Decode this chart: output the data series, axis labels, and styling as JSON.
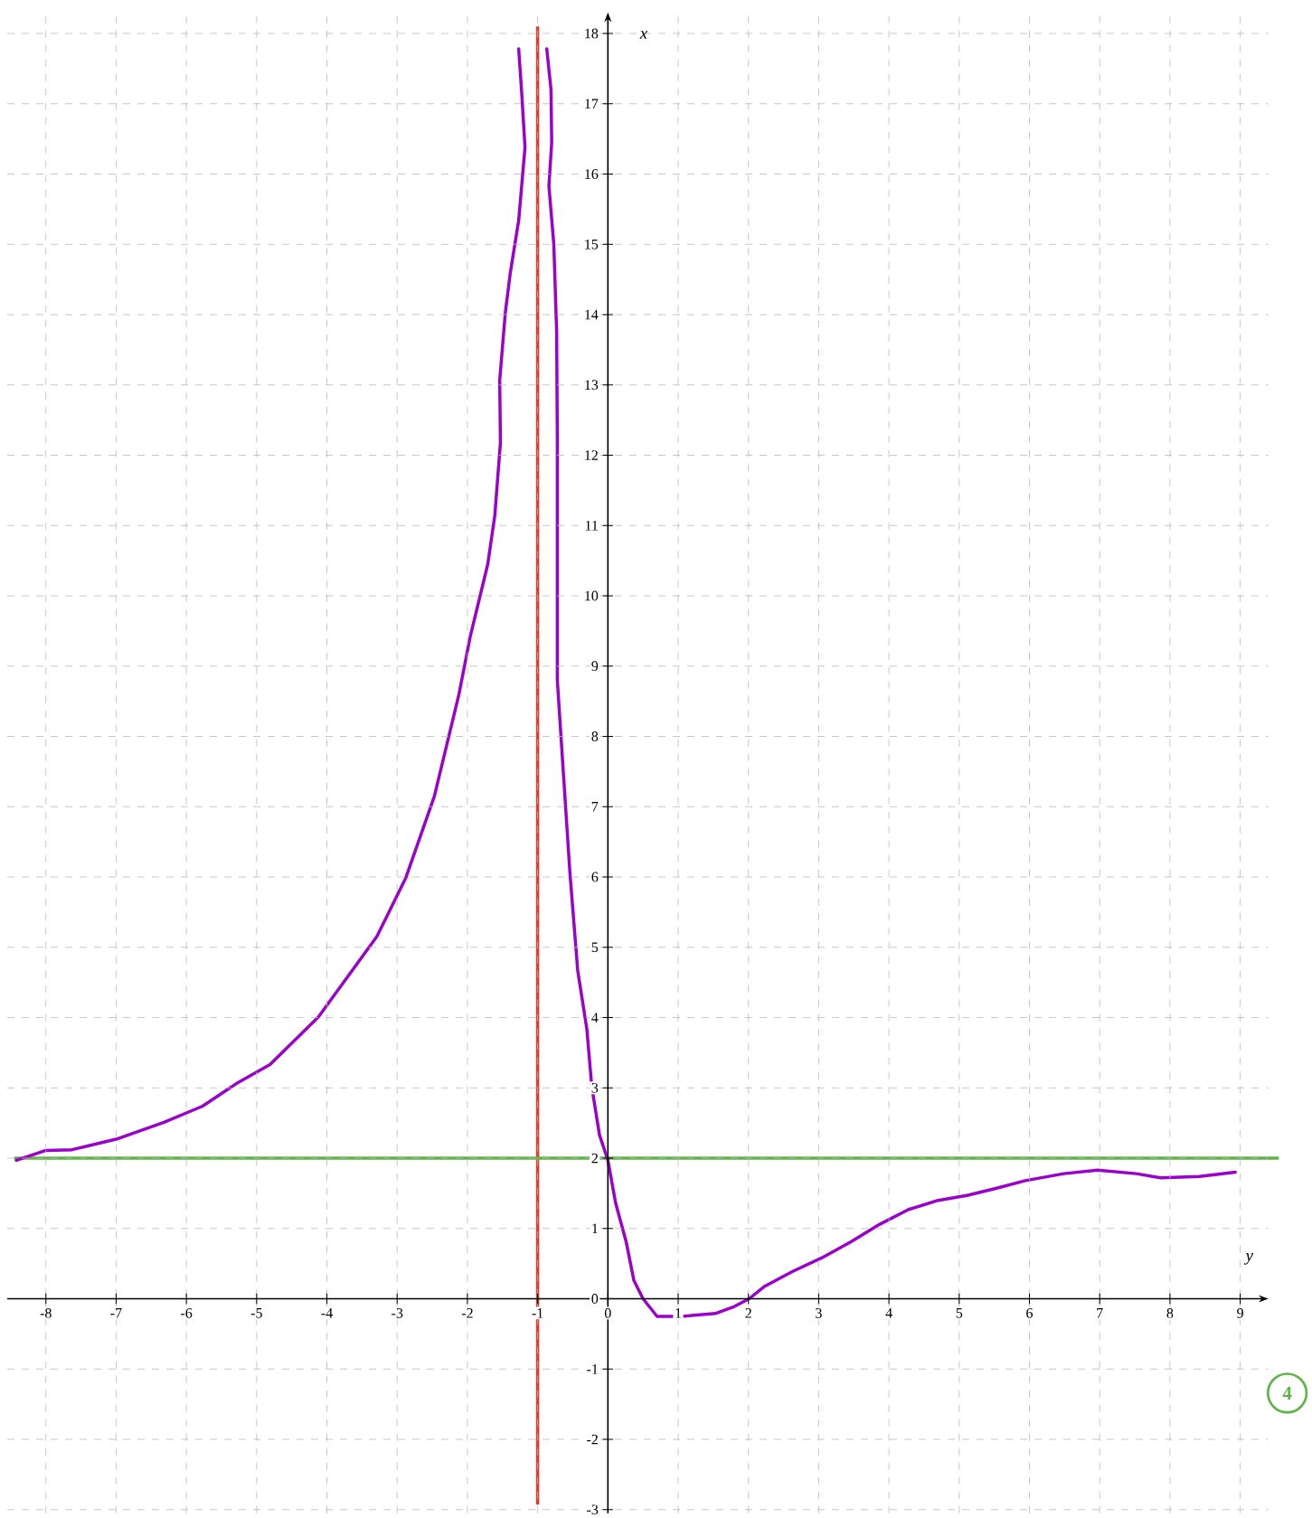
{
  "chart_data": {
    "type": "line",
    "xlabel": "y",
    "ylabel": "x",
    "xlim": [
      -8.55,
      9.4
    ],
    "ylim": [
      -3.05,
      18.3
    ],
    "xticks": [
      -8,
      -7,
      -6,
      -5,
      -4,
      -3,
      -2,
      -1,
      0,
      1,
      2,
      3,
      4,
      5,
      6,
      7,
      8,
      9
    ],
    "yticks": [
      -3,
      -2,
      -1,
      0,
      1,
      2,
      3,
      4,
      5,
      6,
      7,
      8,
      9,
      10,
      11,
      12,
      13,
      14,
      15,
      16,
      17,
      18
    ],
    "grid": true,
    "marker": "none",
    "line_style": "solid",
    "series": [
      {
        "color": "#9b00cc",
        "x": [
          -8.42,
          -8.0,
          -7.63,
          -7.0,
          -6.32,
          -5.77,
          -5.29,
          -4.81,
          -4.12,
          -3.29,
          -2.88,
          -2.47,
          -2.12,
          -1.96,
          -1.71,
          -1.61,
          -1.53,
          -1.54,
          -1.46,
          -1.39,
          -1.27,
          -1.18,
          -1.23,
          -1.27
        ],
        "values": [
          1.97,
          2.11,
          2.12,
          2.27,
          2.51,
          2.74,
          3.06,
          3.33,
          4.01,
          5.15,
          5.98,
          7.15,
          8.6,
          9.42,
          10.45,
          11.14,
          12.18,
          13.07,
          14.03,
          14.59,
          15.34,
          16.38,
          17.2,
          17.78
        ]
      },
      {
        "color": "#9b00cc",
        "x": [
          -0.87,
          -0.81,
          -0.8,
          -0.84,
          -0.77,
          -0.73,
          -0.72,
          -0.72,
          -0.63,
          -0.54,
          -0.43,
          -0.3,
          -0.23,
          -0.12,
          0,
          0.11,
          0.26,
          0.37,
          0.5,
          0.7,
          1.05,
          1.53,
          1.8,
          2.01,
          2.22,
          2.63,
          3.04,
          3.46,
          3.87,
          4.28,
          4.7,
          5.11,
          5.52,
          5.94,
          6.49,
          6.97,
          7.52,
          7.87,
          8.42,
          8.93
        ],
        "values": [
          17.78,
          17.2,
          16.45,
          15.83,
          15.0,
          13.76,
          12.25,
          8.8,
          7.42,
          6.05,
          4.67,
          3.84,
          3.02,
          2.33,
          1.97,
          1.36,
          0.81,
          0.26,
          0,
          -0.25,
          -0.25,
          -0.21,
          -0.11,
          0,
          0.17,
          0.39,
          0.58,
          0.81,
          1.06,
          1.27,
          1.4,
          1.47,
          1.57,
          1.68,
          1.78,
          1.83,
          1.78,
          1.72,
          1.74,
          1.8
        ]
      }
    ],
    "ref_lines": [
      {
        "axis": "x",
        "value": -1,
        "color": "#e8392b"
      },
      {
        "axis": "y",
        "value": 2,
        "color": "#5db545"
      }
    ],
    "annotations": [
      "4"
    ]
  }
}
